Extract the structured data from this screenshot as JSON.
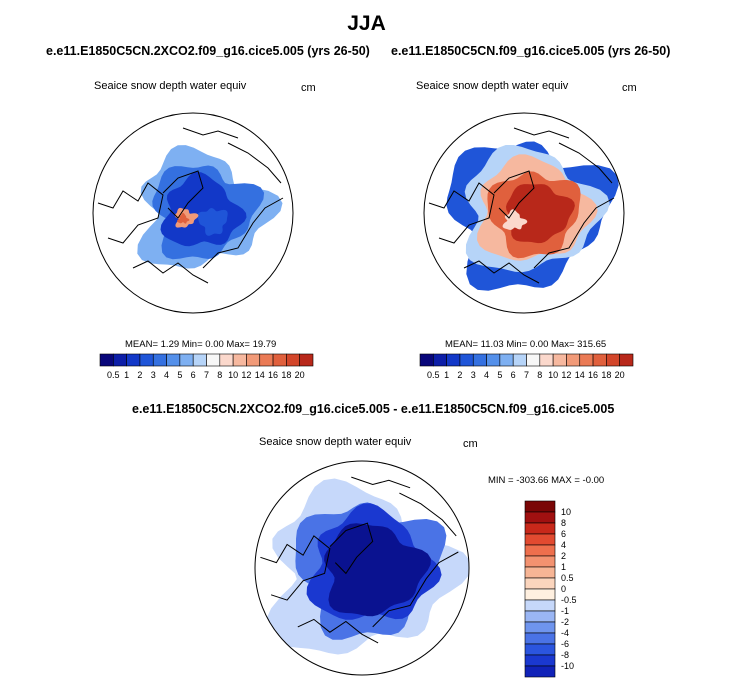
{
  "title": "JJA",
  "panels": [
    {
      "case": "e.e11.E1850C5CN.2XCO2.f09_g16.cice5.005 (yrs 26-50)",
      "variable": "Seaice snow depth water equiv",
      "units": "cm",
      "stats": {
        "mean_label": "MEAN=",
        "mean": "1.29",
        "min_label": "Min=",
        "min": "0.00",
        "max_label": "Max=",
        "max": "19.79"
      }
    },
    {
      "case": "e.e11.E1850C5CN.f09_g16.cice5.005 (yrs 26-50)",
      "variable": "Seaice snow depth water equiv",
      "units": "cm",
      "stats": {
        "mean_label": "MEAN=",
        "mean": "11.03",
        "min_label": "Min=",
        "min": "0.00",
        "max_label": "Max=",
        "max": "315.65"
      }
    }
  ],
  "diff_panel": {
    "case": "e.e11.E1850C5CN.2XCO2.f09_g16.cice5.005 - e.e11.E1850C5CN.f09_g16.cice5.005",
    "variable": "Seaice snow depth water equiv",
    "units": "cm",
    "stats": {
      "min_label": "MIN =",
      "min": "-303.66",
      "max_label": "MAX =",
      "max": "-0.00"
    }
  },
  "colors": {
    "land_outline": "#000000",
    "ocean": "#ffffff",
    "abs_scale": [
      "#08067a",
      "#0c1ea8",
      "#1238c8",
      "#1f55d8",
      "#3470e0",
      "#5490ea",
      "#7eb0f2",
      "#b6d4f8",
      "#f7f7f7",
      "#fbd8cc",
      "#f6b89f",
      "#f19a78",
      "#ea7a55",
      "#e0603d",
      "#d3462a",
      "#b8281a",
      "#8a0f0e"
    ],
    "diff_scale": [
      "#0a1290",
      "#1022b8",
      "#1a38d0",
      "#2b55df",
      "#4a73e6",
      "#6f95ee",
      "#9ab6f4",
      "#c6d8fa",
      "#fff0e0",
      "#fbd5bd",
      "#f7b595",
      "#f39270",
      "#ee6f4d",
      "#e24a30",
      "#c8281a",
      "#a01010",
      "#7a0606"
    ]
  },
  "chart_data": [
    {
      "type": "heatmap",
      "projection": "north polar stereographic",
      "title": "e.e11.E1850C5CN.2XCO2.f09_g16.cice5.005 (yrs 26-50)",
      "variable": "Seaice snow depth water equiv",
      "units": "cm",
      "mean": 1.29,
      "min": 0.0,
      "max": 19.79,
      "colorbar_ticks": [
        "0.5",
        "1",
        "2",
        "3",
        "4",
        "5",
        "6",
        "7",
        "8",
        "10",
        "12",
        "14",
        "16",
        "18",
        "20"
      ],
      "field_summary": "weak snow (0.5-3 cm, blue) over most of Arctic ice pack; local values 8-12 cm (pink/red) near the Canadian Archipelago"
    },
    {
      "type": "heatmap",
      "projection": "north polar stereographic",
      "title": "e.e11.E1850C5CN.f09_g16.cice5.005 (yrs 26-50)",
      "variable": "Seaice snow depth water equiv",
      "units": "cm",
      "mean": 11.03,
      "min": 0.0,
      "max": 315.65,
      "colorbar_ticks": [
        "0.5",
        "1",
        "2",
        "3",
        "4",
        "5",
        "6",
        "7",
        "8",
        "10",
        "12",
        "14",
        "16",
        "18",
        "20"
      ],
      "field_summary": "deep snow (>16 cm, dark red) over central Arctic and north of Greenland; blue margins near coasts"
    },
    {
      "type": "heatmap",
      "projection": "north polar stereographic",
      "title": "e.e11.E1850C5CN.2XCO2.f09_g16.cice5.005 - e.e11.E1850C5CN.f09_g16.cice5.005",
      "variable": "Seaice snow depth water equiv",
      "units": "cm",
      "min": -303.66,
      "max": -0.0,
      "colorbar_ticks": [
        "10",
        "8",
        "6",
        "4",
        "2",
        "1",
        "0.5",
        "0",
        "-0.5",
        "-1",
        "-2",
        "-4",
        "-6",
        "-8",
        "-10"
      ],
      "field_summary": "negative difference everywhere; strongest (<-10 cm, dark blue) over central Arctic; weak (-0.5 to -1, light blue) in marginal seas"
    }
  ]
}
